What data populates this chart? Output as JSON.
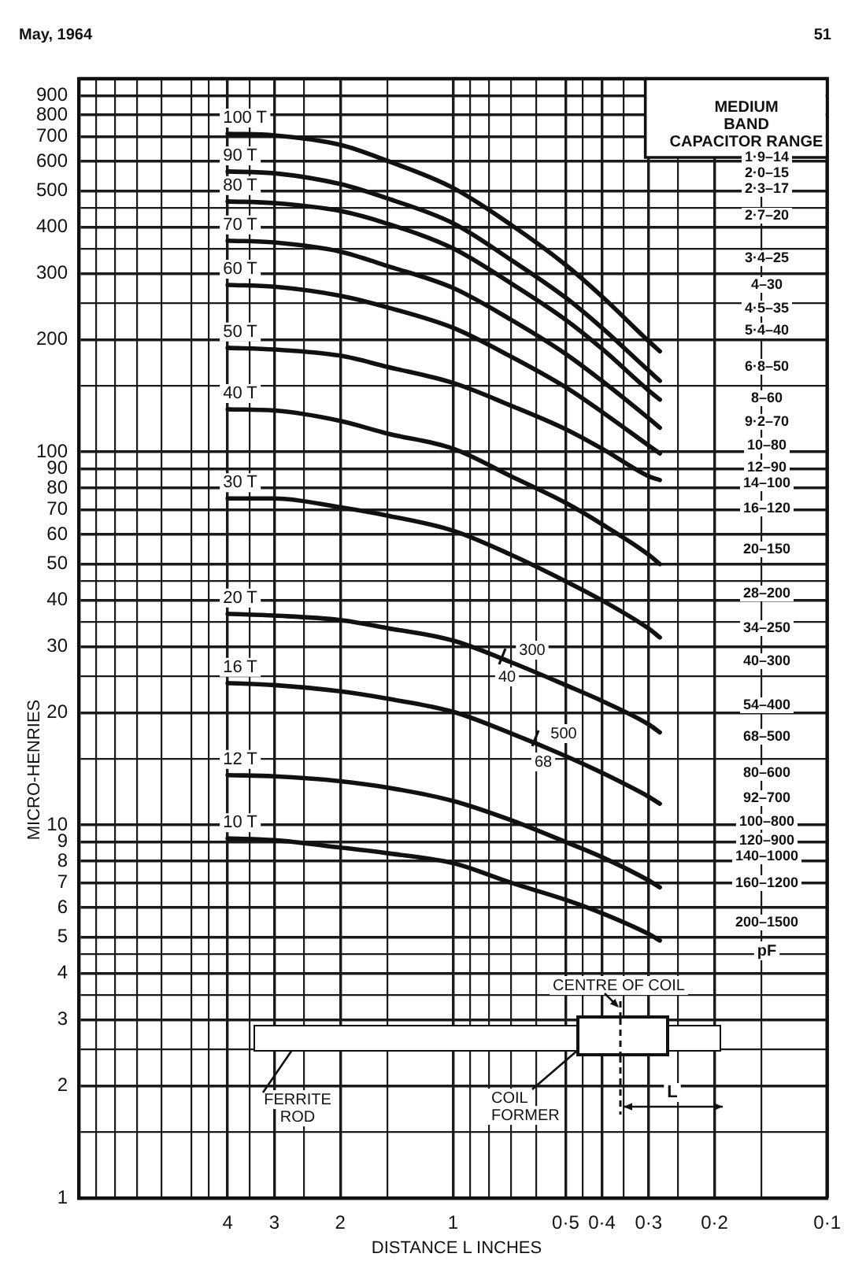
{
  "chart_data": {
    "type": "line",
    "xlabel": "DISTANCE L INCHES",
    "ylabel": "MICRO-HENRIES",
    "x": [
      4,
      3,
      2,
      1.5,
      1,
      0.7,
      0.5,
      0.4,
      0.3,
      0.28
    ],
    "series": [
      {
        "name": "100 T",
        "color": "#111111",
        "values": [
          712,
          705,
          665,
          603,
          510,
          406,
          317,
          261,
          198,
          186
        ]
      },
      {
        "name": "90 T",
        "color": "#111111",
        "values": [
          564,
          558,
          522,
          478,
          410,
          327,
          259,
          215,
          165,
          155
        ]
      },
      {
        "name": "80 T",
        "color": "#111111",
        "values": [
          469,
          464,
          442,
          409,
          351,
          283,
          226,
          189,
          146,
          138
        ]
      },
      {
        "name": "70 T",
        "color": "#111111",
        "values": [
          368,
          364,
          344,
          315,
          275,
          226,
          183,
          155,
          123,
          116
        ]
      },
      {
        "name": "60 T",
        "color": "#111111",
        "values": [
          280,
          277,
          262,
          244,
          215,
          180,
          149,
          128,
          104,
          99
        ]
      },
      {
        "name": "50 T",
        "color": "#111111",
        "values": [
          190,
          188,
          181,
          169,
          153,
          133,
          115,
          102,
          86,
          84
        ]
      },
      {
        "name": "40 T",
        "color": "#111111",
        "values": [
          130,
          129,
          121,
          112,
          102,
          86,
          73,
          64,
          53,
          50
        ]
      },
      {
        "name": "30 T",
        "color": "#111111",
        "values": [
          75,
          75,
          71,
          67.5,
          61.5,
          53,
          45,
          40,
          33.6,
          31.8
        ]
      },
      {
        "name": "20 T",
        "color": "#111111",
        "values": [
          36.8,
          36.4,
          35.4,
          33.7,
          31.2,
          27.3,
          23.7,
          21.5,
          18.6,
          17.7
        ]
      },
      {
        "name": "16 T",
        "color": "#111111",
        "values": [
          24,
          23.7,
          22.8,
          21.8,
          20.1,
          17.6,
          15.3,
          13.8,
          11.9,
          11.4
        ]
      },
      {
        "name": "12 T",
        "color": "#111111",
        "values": [
          13.6,
          13.5,
          13.1,
          12.6,
          11.6,
          10.3,
          9.0,
          8.2,
          7.1,
          6.8
        ]
      },
      {
        "name": "10 T",
        "color": "#111111",
        "values": [
          9.2,
          9.1,
          8.7,
          8.4,
          7.9,
          7.0,
          6.3,
          5.8,
          5.1,
          4.9
        ]
      }
    ],
    "log": "xy",
    "grid": true,
    "xlim": [
      10,
      0.1
    ],
    "xticks": [
      {
        "value": 10,
        "label": null
      },
      {
        "value": 9,
        "label": null
      },
      {
        "value": 8,
        "label": null
      },
      {
        "value": 7,
        "label": null
      },
      {
        "value": 6,
        "label": null
      },
      {
        "value": 5,
        "label": null
      },
      {
        "value": 4.5,
        "label": null
      },
      4,
      {
        "value": 3.5,
        "label": null
      },
      3,
      {
        "value": 2.5,
        "label": null
      },
      2,
      {
        "value": 1.5,
        "label": null
      },
      1,
      {
        "value": 0.9,
        "label": null
      },
      {
        "value": 0.8,
        "label": null
      },
      {
        "value": 0.7,
        "label": null
      },
      {
        "value": 0.6,
        "label": null
      },
      {
        "value": 0.5,
        "label": "0·5"
      },
      {
        "value": 0.45,
        "label": null
      },
      {
        "value": 0.4,
        "label": "0·4"
      },
      {
        "value": 0.35,
        "label": null
      },
      {
        "value": 0.3,
        "label": "0·3"
      },
      {
        "value": 0.25,
        "label": null
      },
      {
        "value": 0.2,
        "label": "0·2"
      },
      {
        "value": 0.15,
        "label": null
      },
      {
        "value": 0.1,
        "label": "0·1"
      }
    ],
    "ylim": [
      1,
      1000
    ],
    "yticks": [
      1,
      {
        "value": 1.5,
        "label": null
      },
      2,
      {
        "value": 2.5,
        "label": null
      },
      3,
      {
        "value": 3.5,
        "label": null
      },
      4,
      {
        "value": 4.5,
        "label": null
      },
      5,
      6,
      7,
      8,
      9,
      10,
      {
        "value": 15,
        "label": null
      },
      20,
      {
        "value": 25,
        "label": null
      },
      30,
      {
        "value": 35,
        "label": null
      },
      40,
      {
        "value": 45,
        "label": null
      },
      50,
      60,
      70,
      80,
      90,
      100,
      {
        "value": 150,
        "label": null
      },
      200,
      {
        "value": 250,
        "label": null
      },
      300,
      {
        "value": 350,
        "label": null
      },
      400,
      {
        "value": 450,
        "label": null
      },
      500,
      600,
      700,
      800,
      900,
      {
        "value": 1000,
        "label": null
      }
    ],
    "annotations": [
      "May, 1964",
      "51",
      "MEDIUM BAND CAPACITOR RANGE",
      "1·9–14",
      "2·0–15",
      "2·3–17",
      "2·7–20",
      "3·4–25",
      "4–30",
      "4·5–35",
      "5·4–40",
      "6·8–50",
      "8–60",
      "9·2–70",
      "10–80",
      "12–90",
      "14–100",
      "16–120",
      "20–150",
      "28–200",
      "34–250",
      "40–300",
      "54–400",
      "68–500",
      "80–600",
      "92–700",
      "100–800",
      "120–900",
      "140–1000",
      "160–1200",
      "200–1500",
      "pF",
      "CENTRE OF COIL",
      "FERRITE ROD",
      "COIL FORMER",
      "L",
      "300",
      "40",
      "500",
      "68"
    ]
  }
}
